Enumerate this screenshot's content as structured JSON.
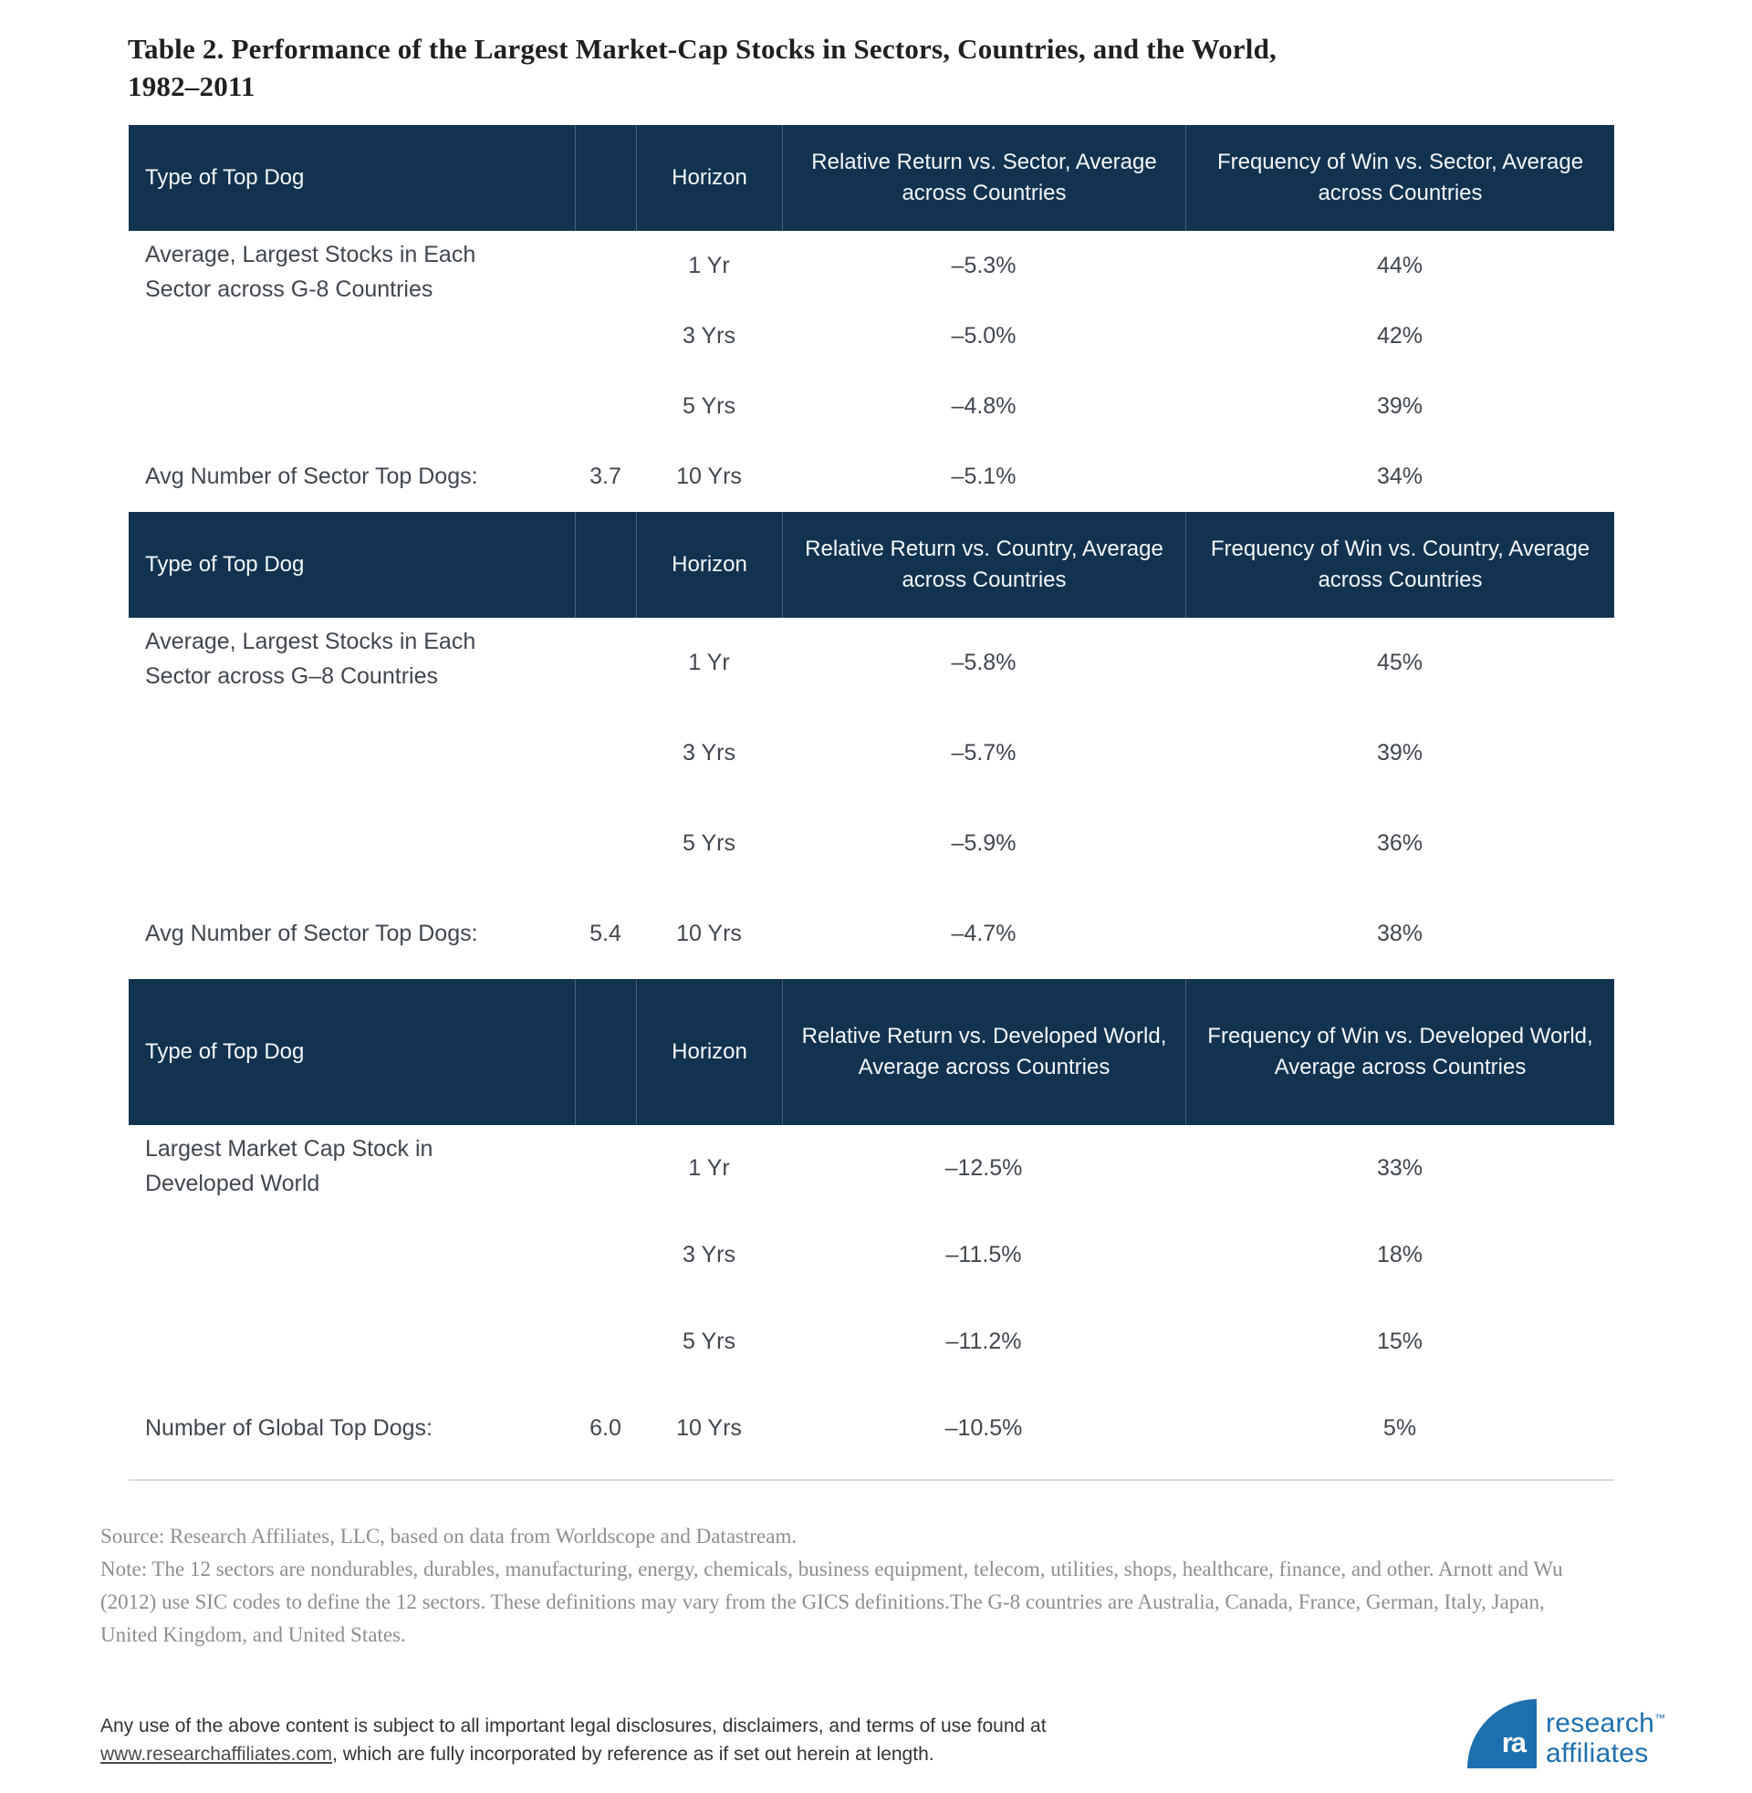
{
  "title": "Table 2. Performance of the Largest Market-Cap Stocks in Sectors, Countries, and the World, 1982–2011",
  "colors": {
    "header_navy": "#123350",
    "body_text": "#40474f",
    "note_gray": "#8e8e8e",
    "brand_blue": "#1e6fae",
    "rule_gray": "#d9d9d9"
  },
  "tables": [
    {
      "header": {
        "col1": "Type of Top Dog",
        "col2": "",
        "col3": "Horizon",
        "col4": "Relative Return vs. Sector, Average across Countries",
        "col5": "Frequency of Win vs. Sector, Average across Countries"
      },
      "row_label": "Average, Largest Stocks in Each Sector across G-8 Countries",
      "footer_label": "Avg Number of Sector Top Dogs:",
      "footer_value": "3.7",
      "rows": [
        {
          "horizon": "1 Yr",
          "relative_return": "–5.3%",
          "frequency": "44%"
        },
        {
          "horizon": "3 Yrs",
          "relative_return": "–5.0%",
          "frequency": "42%"
        },
        {
          "horizon": "5 Yrs",
          "relative_return": "–4.8%",
          "frequency": "39%"
        },
        {
          "horizon": "10 Yrs",
          "relative_return": "–5.1%",
          "frequency": "34%"
        }
      ]
    },
    {
      "header": {
        "col1": "Type of Top Dog",
        "col2": "",
        "col3": "Horizon",
        "col4": "Relative Return vs. Country, Average across Countries",
        "col5": "Frequency of Win vs. Country, Average across Countries"
      },
      "row_label": "Average, Largest Stocks in Each Sector across G–8 Countries",
      "footer_label": "Avg Number of Sector Top Dogs:",
      "footer_value": "5.4",
      "rows": [
        {
          "horizon": "1 Yr",
          "relative_return": "–5.8%",
          "frequency": "45%"
        },
        {
          "horizon": "3 Yrs",
          "relative_return": "–5.7%",
          "frequency": "39%"
        },
        {
          "horizon": "5 Yrs",
          "relative_return": "–5.9%",
          "frequency": "36%"
        },
        {
          "horizon": "10 Yrs",
          "relative_return": "–4.7%",
          "frequency": "38%"
        }
      ]
    },
    {
      "header": {
        "col1": "Type of Top Dog",
        "col2": "",
        "col3": "Horizon",
        "col4": "Relative Return vs. Developed World, Average across Countries",
        "col5": "Frequency of Win vs. Developed World, Average across Countries"
      },
      "row_label": "Largest Market Cap Stock in Developed World",
      "footer_label": "Number of Global Top Dogs:",
      "footer_value": "6.0",
      "rows": [
        {
          "horizon": "1 Yr",
          "relative_return": "–12.5%",
          "frequency": "33%"
        },
        {
          "horizon": "3 Yrs",
          "relative_return": "–11.5%",
          "frequency": "18%"
        },
        {
          "horizon": "5 Yrs",
          "relative_return": "–11.2%",
          "frequency": "15%"
        },
        {
          "horizon": "10 Yrs",
          "relative_return": "–10.5%",
          "frequency": "5%"
        }
      ]
    }
  ],
  "notes": {
    "source": "Source: Research Affiliates, LLC, based on data from Worldscope and Datastream.",
    "note": "Note: The 12 sectors are nondurables, durables, manufacturing, energy, chemicals, business equipment, telecom, utilities, shops, healthcare, finance, and other. Arnott and Wu (2012) use SIC codes to define the 12 sectors. These definitions may vary from the GICS definitions.The G-8 countries are Australia, Canada, France, German, Italy, Japan, United Kingdom, and United States."
  },
  "legal": {
    "text_before": "Any use of the above content is subject to all important legal disclosures, disclaimers, and terms of use found at ",
    "link": "www.researchaffiliates.com",
    "text_after": ", which are fully incorporated by reference as if set out herein at length."
  },
  "logo": {
    "monogram": "ra",
    "line1": "research",
    "tm": "™",
    "line2": "affiliates"
  }
}
